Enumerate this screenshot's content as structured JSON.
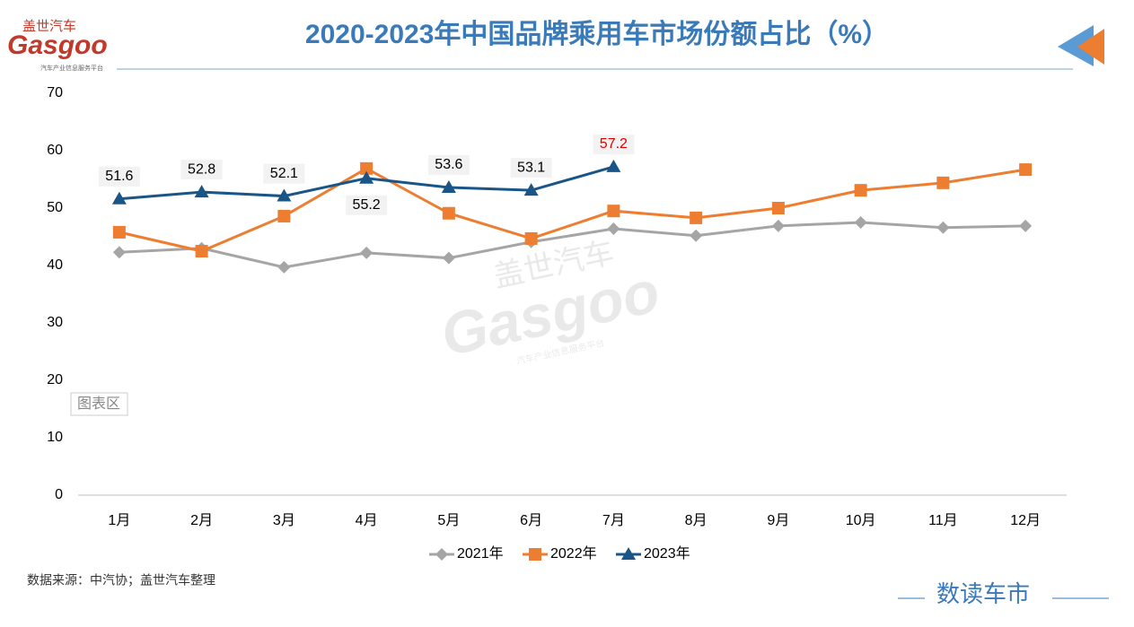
{
  "chart_data": {
    "type": "line",
    "title": "2020-2023年中国品牌乘用车市场份额占比（%）",
    "categories": [
      "1月",
      "2月",
      "3月",
      "4月",
      "5月",
      "6月",
      "7月",
      "8月",
      "9月",
      "10月",
      "11月",
      "12月"
    ],
    "series": [
      {
        "name": "2021年",
        "color": "#a5a5a5",
        "marker": "diamond",
        "values": [
          42.3,
          43.0,
          39.7,
          42.2,
          41.3,
          44.1,
          46.4,
          45.2,
          46.9,
          47.5,
          46.6,
          46.9
        ]
      },
      {
        "name": "2022年",
        "color": "#ed7d31",
        "marker": "square",
        "values": [
          45.8,
          42.5,
          48.6,
          56.9,
          49.1,
          44.7,
          49.5,
          48.3,
          50.0,
          53.1,
          54.4,
          56.7
        ]
      },
      {
        "name": "2023年",
        "color": "#1a5588",
        "marker": "triangle",
        "values": [
          51.6,
          52.8,
          52.1,
          55.2,
          53.6,
          53.1,
          57.2,
          null,
          null,
          null,
          null,
          null
        ],
        "label_colors": [
          "#000000",
          "#000000",
          "#000000",
          "#000000",
          "#000000",
          "#000000",
          "#e00000",
          null,
          null,
          null,
          null,
          null
        ]
      }
    ],
    "ylim": [
      0,
      70
    ],
    "yticks": [
      0,
      10,
      20,
      30,
      40,
      50,
      60,
      70
    ],
    "grid": false,
    "legend": "bottom"
  },
  "logo": {
    "cn": "盖世汽车",
    "en": "Gasgoo",
    "tagline": "汽车产业信息服务平台"
  },
  "tooltip": "图表区",
  "source": "数据来源：中汽协；盖世汽车整理",
  "footer_brand": "数读车市"
}
